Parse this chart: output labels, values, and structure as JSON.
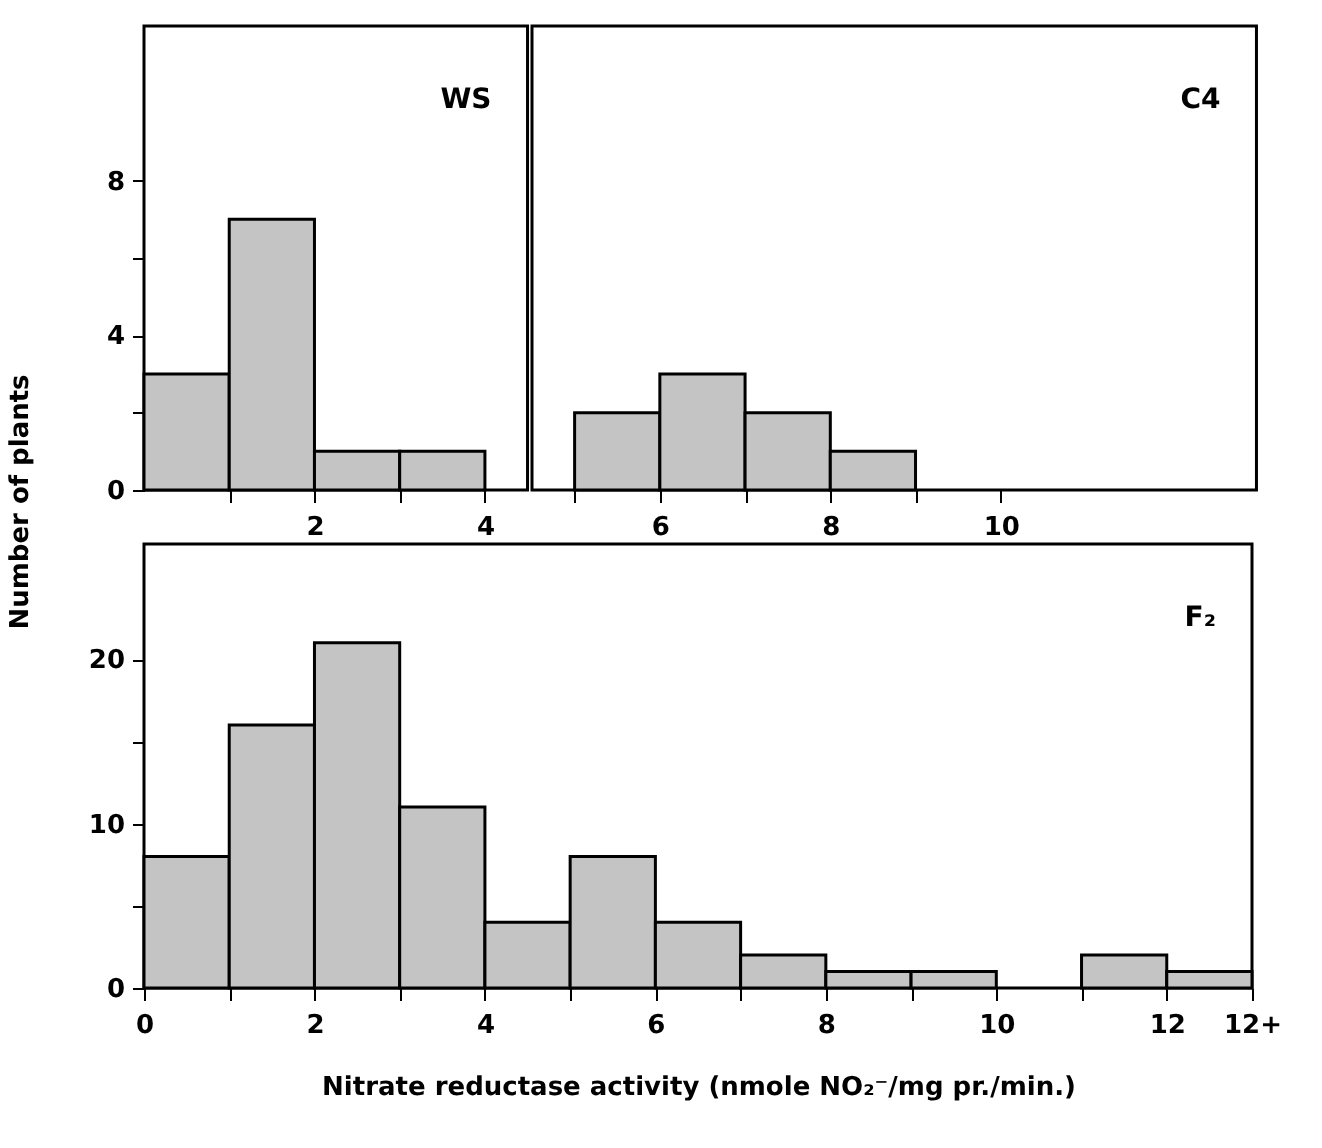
{
  "chart_data": [
    {
      "type": "histogram",
      "title": "WS",
      "bins": [
        0,
        1,
        2,
        3,
        4
      ],
      "values": [
        3,
        7,
        1,
        1
      ],
      "color": "#c4c4c4",
      "xlim": [
        0,
        4.5
      ],
      "ylim": [
        0,
        12
      ],
      "xticks": [
        {
          "value": 1,
          "label": null
        },
        2,
        {
          "value": 3,
          "label": null
        },
        4
      ],
      "yticks": [
        0,
        {
          "value": 2,
          "label": null
        },
        4,
        {
          "value": 6,
          "label": null
        },
        8
      ]
    },
    {
      "type": "histogram",
      "title": "C4",
      "bins": [
        5,
        6,
        7,
        8,
        9
      ],
      "values": [
        2,
        3,
        2,
        1
      ],
      "color": "#c4c4c4",
      "xlim": [
        4.5,
        13
      ],
      "ylim": [
        0,
        12
      ],
      "tick_labels": "x",
      "xticks": [
        {
          "value": 5,
          "label": null
        },
        6,
        {
          "value": 7,
          "label": null
        },
        8,
        {
          "value": 9,
          "label": null
        },
        10
      ]
    },
    {
      "type": "histogram",
      "title": "F₂",
      "ylabel": "Number of plants",
      "xlabel": "Nitrate reductase activity (nmole NO₂⁻/mg pr./min.)",
      "bins": [
        0,
        1,
        2,
        3,
        4,
        5,
        6,
        7,
        8,
        9,
        10,
        11,
        12,
        13
      ],
      "values": [
        8,
        16,
        21,
        11,
        4,
        8,
        4,
        2,
        1,
        1,
        0,
        2,
        1
      ],
      "color": "#c4c4c4",
      "xlim": [
        0,
        13
      ],
      "ylim": [
        0,
        27
      ],
      "xticks": [
        0,
        {
          "value": 1,
          "label": null
        },
        2,
        {
          "value": 3,
          "label": null
        },
        4,
        {
          "value": 5,
          "label": null
        },
        6,
        {
          "value": 7,
          "label": null
        },
        8,
        {
          "value": 9,
          "label": null
        },
        10,
        {
          "value": 11,
          "label": null
        },
        12,
        {
          "value": 13,
          "label": "12+"
        }
      ],
      "yticks": [
        0,
        {
          "value": 5,
          "label": null
        },
        10,
        {
          "value": 15,
          "label": null
        },
        20
      ]
    }
  ]
}
